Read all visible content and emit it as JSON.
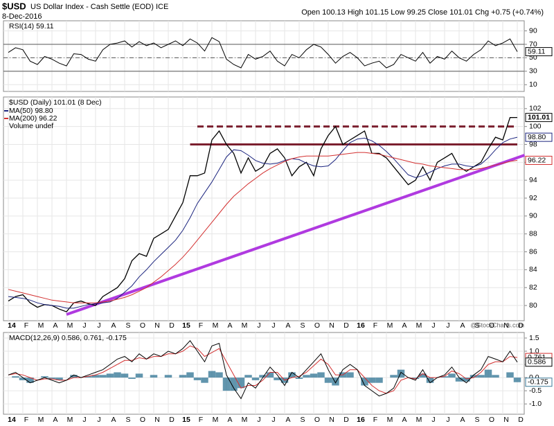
{
  "header": {
    "symbol": "$USD",
    "name": "US Dollar Index - Cash Settle (EOD) ICE",
    "date": "8-Dec-2016",
    "quote": "Open 100.13 High 101.15 Low 99.25 Close 101.01 Chg +0.75 (+0.74%)",
    "credit": "@StockCharts.com"
  },
  "chart_data": [
    {
      "type": "line",
      "title": "RSI(14) 59.11",
      "ylim": [
        0,
        105
      ],
      "yticks": [
        90,
        70,
        50,
        30,
        10
      ],
      "grid": true,
      "reference_lines": [
        {
          "value": 70,
          "style": "solid",
          "color": "#555555"
        },
        {
          "value": 50,
          "style": "dashdot",
          "color": "#555555"
        },
        {
          "value": 30,
          "style": "solid",
          "color": "#555555"
        }
      ],
      "series": [
        {
          "name": "RSI(14)",
          "color": "#000000",
          "label": "59.11",
          "values": [
            58,
            65,
            62,
            45,
            40,
            52,
            48,
            42,
            38,
            56,
            55,
            48,
            45,
            62,
            70,
            72,
            75,
            66,
            74,
            68,
            72,
            65,
            70,
            75,
            68,
            78,
            72,
            60,
            80,
            74,
            48,
            40,
            35,
            55,
            48,
            52,
            60,
            45,
            38,
            55,
            50,
            62,
            70,
            66,
            55,
            42,
            52,
            58,
            50,
            38,
            42,
            45,
            35,
            40,
            55,
            50,
            45,
            58,
            42,
            52,
            48,
            60,
            50,
            45,
            55,
            62,
            75,
            68,
            72,
            78,
            59.11,
            null
          ]
        }
      ]
    },
    {
      "type": "line",
      "title": "$USD (Daily) 101.01 (8 Dec)",
      "legend_extra": "Volume undef",
      "ylim": [
        78.3,
        103.3
      ],
      "yticks": [
        80,
        82,
        84,
        86,
        88,
        90,
        92,
        94,
        96,
        98,
        100,
        102
      ],
      "grid": true,
      "categories": [
        "14",
        null,
        "F",
        null,
        "M",
        null,
        "A",
        null,
        "M",
        null,
        "J",
        null,
        "J",
        null,
        "A",
        null,
        "S",
        null,
        "O",
        null,
        "N",
        null,
        "D",
        null,
        "15",
        null,
        "F",
        null,
        "M",
        null,
        "A",
        null,
        "M",
        null,
        "J",
        null,
        "J",
        null,
        "A",
        null,
        "S",
        null,
        "O",
        null,
        "N",
        null,
        "D",
        null,
        "16",
        null,
        "F",
        null,
        "M",
        null,
        "A",
        null,
        "M",
        null,
        "J",
        null,
        "J",
        null,
        "A",
        null,
        "S",
        null,
        "O",
        null,
        "N",
        null,
        "D",
        null
      ],
      "reference_lines": [
        {
          "value": 100,
          "style": "dashed",
          "color": "#7b1f2e",
          "x": [
            26,
            70
          ]
        },
        {
          "value": 98,
          "style": "solid",
          "color": "#7b1f2e",
          "x": [
            25,
            70
          ]
        }
      ],
      "trend_lines": [
        {
          "color": "#b03ae0",
          "x": [
            8,
            71
          ],
          "values": [
            79.0,
            96.8
          ]
        }
      ],
      "series": [
        {
          "name": "$USD (Daily)",
          "color": "#000000",
          "label": "101.01",
          "values": [
            80.5,
            81.0,
            81.2,
            80.3,
            79.8,
            80.1,
            80.0,
            79.6,
            79.3,
            80.3,
            80.5,
            80.2,
            80.0,
            81.0,
            81.5,
            82.0,
            83.0,
            85.0,
            85.8,
            85.5,
            87.5,
            88.0,
            88.5,
            90.0,
            91.5,
            94.5,
            94.5,
            94.8,
            98.5,
            99.5,
            98.0,
            97.0,
            94.8,
            96.5,
            95.0,
            95.5,
            97.0,
            97.5,
            96.5,
            94.5,
            95.5,
            96.0,
            94.5,
            97.5,
            99.0,
            100.0,
            98.0,
            98.5,
            99.0,
            99.5,
            97.0,
            97.0,
            96.5,
            95.5,
            94.5,
            93.5,
            94.0,
            95.5,
            94.0,
            96.0,
            96.5,
            97.0,
            95.5,
            95.0,
            95.5,
            96.0,
            97.5,
            98.8,
            98.5,
            101.0,
            101.01,
            null
          ]
        },
        {
          "name": "MA(50) 98.80",
          "color": "#1a237e",
          "label": "98.80",
          "values": [
            81.0,
            80.9,
            80.8,
            80.6,
            80.3,
            80.1,
            80.0,
            79.9,
            79.7,
            79.7,
            79.9,
            80.1,
            80.2,
            80.3,
            80.4,
            80.8,
            81.5,
            82.2,
            83.2,
            84.0,
            84.9,
            85.7,
            86.5,
            87.3,
            88.4,
            89.8,
            91.4,
            92.6,
            93.8,
            95.2,
            96.6,
            97.4,
            97.3,
            96.8,
            96.2,
            95.9,
            95.8,
            95.9,
            96.2,
            96.4,
            96.3,
            95.9,
            95.6,
            95.5,
            95.6,
            96.3,
            97.3,
            98.2,
            98.6,
            98.7,
            98.4,
            97.9,
            97.2,
            96.4,
            95.5,
            94.6,
            94.3,
            94.5,
            94.9,
            95.3,
            95.6,
            95.8,
            95.8,
            95.6,
            95.5,
            95.8,
            96.5,
            97.4,
            98.2,
            98.6,
            98.8,
            null
          ]
        },
        {
          "name": "MA(200) 96.22",
          "color": "#d32f2f",
          "label": "96.22",
          "values": [
            81.8,
            81.6,
            81.4,
            81.2,
            81.0,
            80.8,
            80.6,
            80.5,
            80.4,
            80.3,
            80.3,
            80.3,
            80.3,
            80.4,
            80.5,
            80.7,
            80.9,
            81.2,
            81.6,
            82.0,
            82.6,
            83.2,
            83.9,
            84.6,
            85.4,
            86.3,
            87.3,
            88.3,
            89.3,
            90.3,
            91.3,
            92.2,
            92.9,
            93.6,
            94.2,
            94.8,
            95.3,
            95.7,
            96.1,
            96.4,
            96.6,
            96.7,
            96.7,
            96.7,
            96.7,
            96.8,
            96.9,
            97.0,
            97.1,
            97.1,
            97.0,
            96.9,
            96.7,
            96.5,
            96.3,
            96.1,
            95.9,
            95.8,
            95.6,
            95.5,
            95.4,
            95.3,
            95.2,
            95.2,
            95.2,
            95.3,
            95.5,
            95.7,
            95.9,
            96.1,
            96.22,
            null
          ]
        }
      ]
    },
    {
      "type": "line",
      "title": "MACD(12,26,9) 0.586, 0.761, -0.175",
      "ylim": [
        -1.39,
        1.71
      ],
      "yticks": [
        1.5,
        {
          "value": 1,
          "label": "1.0"
        },
        0.5,
        {
          "value": 0,
          "label": "0.0"
        },
        -0.5,
        {
          "value": -1,
          "label": "-1.0"
        }
      ],
      "grid": true,
      "series": [
        {
          "name": "Histogram",
          "type": "bar",
          "color": "#3a7a99",
          "label": "-0.175",
          "values": [
            0,
            0.05,
            -0.1,
            -0.2,
            0,
            0.05,
            -0.05,
            -0.1,
            0,
            0.1,
            0,
            0.05,
            0.1,
            0.1,
            0.15,
            0.2,
            0.15,
            -0.05,
            0.15,
            0,
            0.1,
            0,
            0.1,
            0,
            0.1,
            0.2,
            -0.1,
            -0.2,
            0.25,
            0.2,
            -0.5,
            -0.5,
            -0.4,
            0.1,
            -0.1,
            0.1,
            0.2,
            -0.1,
            -0.2,
            0.2,
            -0.05,
            0.1,
            0.15,
            0.2,
            -0.2,
            -0.3,
            0.2,
            0.2,
            0,
            -0.3,
            -0.2,
            -0.2,
            0,
            0.1,
            0.3,
            0,
            -0.05,
            0.15,
            -0.2,
            0,
            0.05,
            0.15,
            -0.15,
            -0.15,
            0.1,
            0.1,
            0.3,
            0.1,
            0,
            0.2,
            -0.175,
            null
          ]
        },
        {
          "name": "Signal",
          "color": "#d32f2f",
          "label": "0.761",
          "values": [
            0.1,
            0.15,
            0.1,
            0,
            -0.1,
            -0.05,
            -0.05,
            -0.1,
            -0.1,
            0,
            0,
            0.05,
            0.1,
            0.2,
            0.35,
            0.5,
            0.65,
            0.65,
            0.75,
            0.7,
            0.8,
            0.8,
            0.9,
            0.9,
            1.0,
            1.2,
            1.1,
            0.8,
            0.95,
            1.1,
            0.6,
            0.1,
            -0.4,
            -0.3,
            -0.3,
            -0.1,
            0.2,
            0.2,
            -0.1,
            0,
            0.05,
            0.2,
            0.45,
            0.7,
            0.5,
            0.1,
            0.1,
            0.3,
            0.3,
            0,
            -0.3,
            -0.5,
            -0.6,
            -0.5,
            -0.1,
            0,
            -0.05,
            0.15,
            0,
            0,
            0.05,
            0.25,
            0.15,
            -0.05,
            0,
            0.2,
            0.5,
            0.6,
            0.6,
            0.8,
            0.761,
            null
          ]
        },
        {
          "name": "MACD",
          "color": "#000000",
          "label": "0.586",
          "values": [
            0.1,
            0.2,
            0,
            -0.2,
            -0.1,
            0,
            -0.1,
            -0.2,
            -0.1,
            0.1,
            0,
            0.1,
            0.2,
            0.3,
            0.5,
            0.7,
            0.8,
            0.6,
            0.9,
            0.7,
            0.9,
            0.8,
            1.0,
            0.9,
            1.1,
            1.4,
            1.0,
            0.6,
            1.2,
            1.3,
            0.1,
            -0.4,
            -0.8,
            -0.2,
            -0.4,
            0,
            0.4,
            0.1,
            -0.3,
            0.2,
            0,
            0.3,
            0.6,
            0.9,
            0.3,
            -0.2,
            0.3,
            0.5,
            0.3,
            -0.3,
            -0.5,
            -0.7,
            -0.6,
            -0.4,
            0.2,
            0,
            -0.1,
            0.3,
            -0.2,
            0,
            0.1,
            0.4,
            0,
            -0.2,
            0.1,
            0.3,
            0.8,
            0.7,
            0.6,
            1.0,
            0.586,
            null
          ]
        }
      ]
    }
  ]
}
